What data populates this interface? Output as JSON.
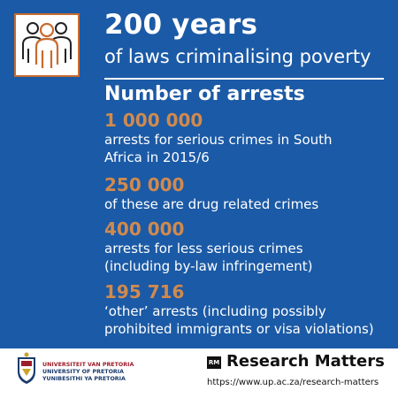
{
  "header": {
    "title": "200 years",
    "subtitle": "of laws criminalising poverty",
    "icon": "people-group-icon"
  },
  "section_title": "Number of arrests",
  "stats": [
    {
      "number": "1 000 000",
      "description": "arrests for serious crimes in South Africa in 2015/6"
    },
    {
      "number": "250 000",
      "description": "of these are drug related crimes"
    },
    {
      "number": "400 000",
      "description": "arrests for less serious crimes (including by-law infringement)"
    },
    {
      "number": "195 716",
      "description": "‘other’ arrests (including possibly prohibited immigrants or visa violations)"
    }
  ],
  "footer": {
    "university_lines": [
      "UNIVERSITEIT VAN PRETORIA",
      "UNIVERSITY OF PRETORIA",
      "YUNIBESITHI YA PRETORIA"
    ],
    "rm_badge": "RM",
    "brand": "Research Matters",
    "url": "https://www.up.ac.za/research-matters"
  },
  "colors": {
    "background": "#1b5aa6",
    "accent": "#d08a4e",
    "text": "#ffffff"
  }
}
